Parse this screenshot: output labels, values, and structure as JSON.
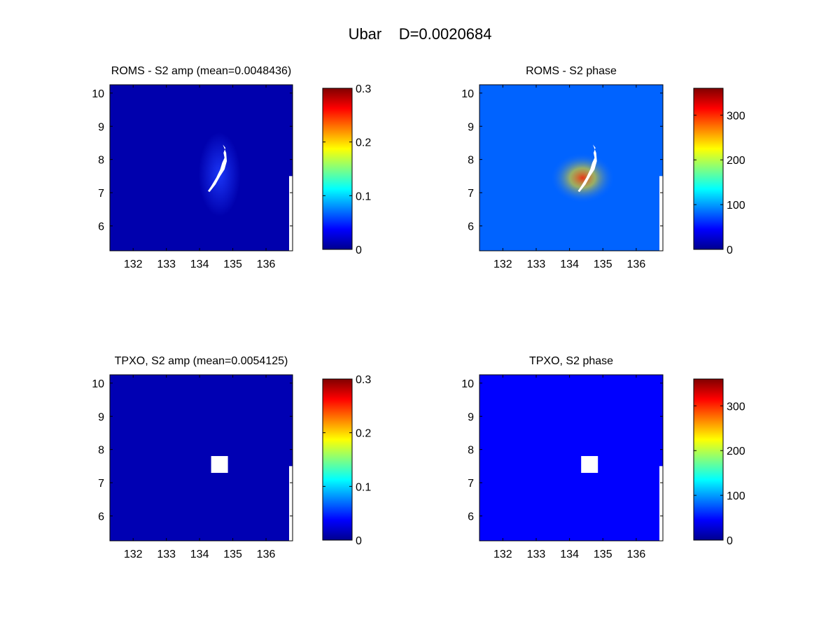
{
  "figure": {
    "title": "Ubar    D=0.0020684"
  },
  "chart_data": [
    {
      "type": "heatmap",
      "title": "ROMS - S2 amp (mean=0.0048436)",
      "xticks": [
        132,
        133,
        134,
        135,
        136
      ],
      "yticks": [
        6,
        7,
        8,
        9,
        10
      ],
      "xlim": [
        131.3,
        136.8
      ],
      "ylim": [
        5.25,
        10.25
      ],
      "colorbar": {
        "ticks": [
          0,
          0.1,
          0.2,
          0.3
        ],
        "labels": [
          "0",
          "0.1",
          "0.2",
          "0.3"
        ],
        "lim": [
          0,
          0.3
        ]
      },
      "colormap": "jet",
      "background_value": 0.01,
      "mask": "island"
    },
    {
      "type": "heatmap",
      "title": "ROMS - S2 phase",
      "xticks": [
        132,
        133,
        134,
        135,
        136
      ],
      "yticks": [
        6,
        7,
        8,
        9,
        10
      ],
      "xlim": [
        131.3,
        136.8
      ],
      "ylim": [
        5.25,
        10.25
      ],
      "colorbar": {
        "ticks": [
          0,
          100,
          200,
          300
        ],
        "labels": [
          "0",
          "100",
          "200",
          "300"
        ],
        "lim": [
          0,
          360
        ]
      },
      "colormap": "jet",
      "background_value": 80,
      "mask": "island"
    },
    {
      "type": "heatmap",
      "title": "TPXO, S2 amp (mean=0.0054125)",
      "xticks": [
        132,
        133,
        134,
        135,
        136
      ],
      "yticks": [
        6,
        7,
        8,
        9,
        10
      ],
      "xlim": [
        131.3,
        136.8
      ],
      "ylim": [
        5.25,
        10.25
      ],
      "colorbar": {
        "ticks": [
          0,
          0.1,
          0.2,
          0.3
        ],
        "labels": [
          "0",
          "0.1",
          "0.2",
          "0.3"
        ],
        "lim": [
          0,
          0.3
        ]
      },
      "colormap": "jet",
      "background_value": 0.012,
      "mask": "square"
    },
    {
      "type": "heatmap",
      "title": "TPXO, S2 phase",
      "xticks": [
        132,
        133,
        134,
        135,
        136
      ],
      "yticks": [
        6,
        7,
        8,
        9,
        10
      ],
      "xlim": [
        131.3,
        136.8
      ],
      "ylim": [
        5.25,
        10.25
      ],
      "colorbar": {
        "ticks": [
          0,
          100,
          200,
          300
        ],
        "labels": [
          "0",
          "100",
          "200",
          "300"
        ],
        "lim": [
          0,
          360
        ]
      },
      "colormap": "jet",
      "background_value": 45,
      "mask": "square"
    }
  ]
}
